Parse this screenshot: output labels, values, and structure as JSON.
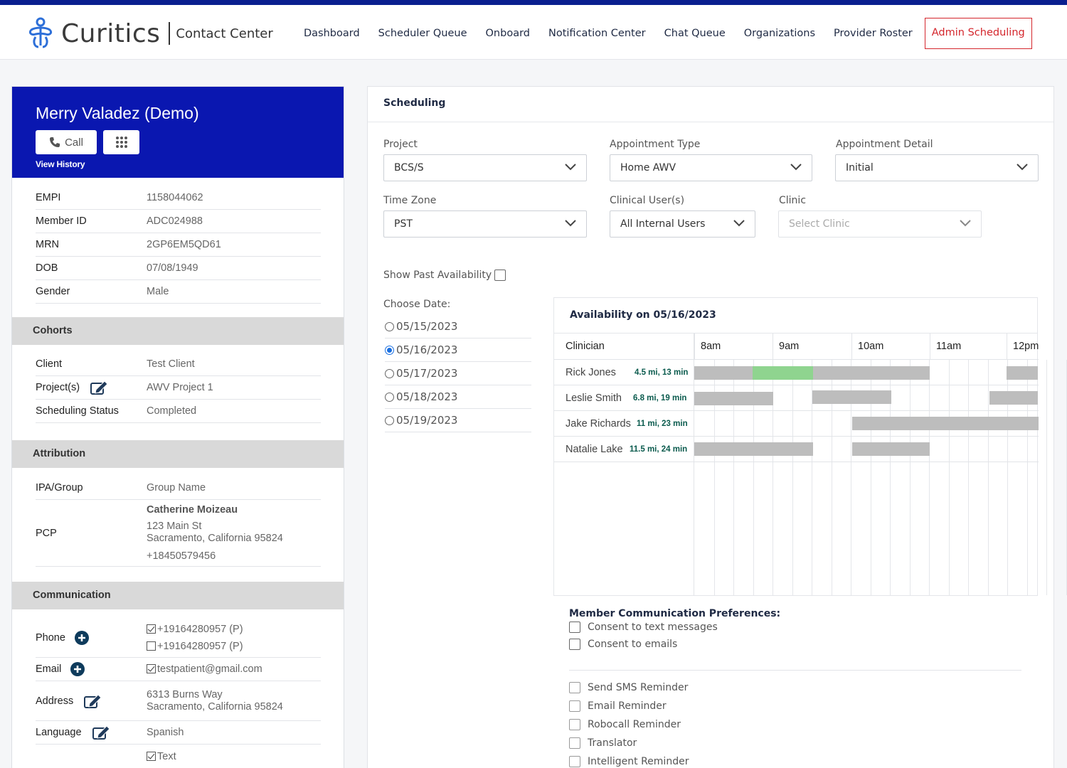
{
  "app": {
    "brand": "Curitics",
    "subtitle": "Contact Center"
  },
  "nav": [
    "Dashboard",
    "Scheduler Queue",
    "Onboard",
    "Notification Center",
    "Chat Queue",
    "Organizations",
    "Provider Roster",
    "Admin Scheduling"
  ],
  "nav_active": "Admin Scheduling",
  "colors": {
    "brand_blue": "#0a17b0",
    "active_red": "#d4262c",
    "available_gray": "#bdbdbd",
    "selected_green": "#8fd48f"
  },
  "member": {
    "name": "Merry Valadez (Demo)",
    "call_label": "Call",
    "view_history": "View History",
    "fields": [
      {
        "label": "EMPI",
        "value": "1158044062"
      },
      {
        "label": "Member ID",
        "value": "ADC024988"
      },
      {
        "label": "MRN",
        "value": "2GP6EM5QD61"
      },
      {
        "label": "DOB",
        "value": "07/08/1949"
      },
      {
        "label": "Gender",
        "value": "Male"
      }
    ]
  },
  "cohorts": {
    "title": "Cohorts",
    "client_label": "Client",
    "client": "Test Client",
    "projects_label": "Project(s)",
    "projects": "AWV Project 1",
    "status_label": "Scheduling Status",
    "status": "Completed"
  },
  "attribution": {
    "title": "Attribution",
    "ipa_label": "IPA/Group",
    "ipa": "Group Name",
    "pcp_label": "PCP",
    "pcp_name": "Catherine Moizeau",
    "pcp_addr1": "123 Main St",
    "pcp_addr2": "Sacramento, California 95824",
    "pcp_phone": "+18450579456"
  },
  "communication": {
    "title": "Communication",
    "phone_label": "Phone",
    "phones": [
      {
        "value": "+19164280957 (P)",
        "checked": true
      },
      {
        "value": "+19164280957 (P)",
        "checked": false
      }
    ],
    "email_label": "Email",
    "email": "testpatient@gmail.com",
    "address_label": "Address",
    "addr1": "6313 Burns Way",
    "addr2": "Sacramento, California 95824",
    "language_label": "Language",
    "language": "Spanish",
    "text_pref": "Text"
  },
  "scheduling": {
    "title": "Scheduling",
    "project_label": "Project",
    "project": "BCS/S",
    "appt_type_label": "Appointment Type",
    "appt_type": "Home AWV",
    "appt_detail_label": "Appointment Detail",
    "appt_detail": "Initial",
    "tz_label": "Time Zone",
    "tz": "PST",
    "clinical_label": "Clinical User(s)",
    "clinical": "All Internal Users",
    "clinic_label": "Clinic",
    "clinic_placeholder": "Select Clinic",
    "past_label": "Show Past Availability",
    "choose_date_label": "Choose Date:",
    "dates": [
      "05/15/2023",
      "05/16/2023",
      "05/17/2023",
      "05/18/2023",
      "05/19/2023"
    ],
    "selected_date_index": 1
  },
  "availability": {
    "title": "Availability on 05/16/2023",
    "clinician_header": "Clinician",
    "hours": [
      "8am",
      "9am",
      "10am",
      "11am",
      "12pm"
    ],
    "clinicians": [
      {
        "name": "Rick Jones",
        "distance": "4.5 mi, 13 min"
      },
      {
        "name": "Leslie Smith",
        "distance": "6.8 mi, 19 min"
      },
      {
        "name": "Jake Richards",
        "distance": "11 mi, 23 min"
      },
      {
        "name": "Natalie Lake",
        "distance": "11.5 mi, 24 min"
      }
    ]
  },
  "preferences": {
    "title": "Member Communication Preferences:",
    "consents": [
      "Consent to text messages",
      "Consent to emails"
    ],
    "reminders": [
      "Send SMS Reminder",
      "Email Reminder",
      "Robocall Reminder",
      "Translator",
      "Intelligent Reminder"
    ]
  }
}
